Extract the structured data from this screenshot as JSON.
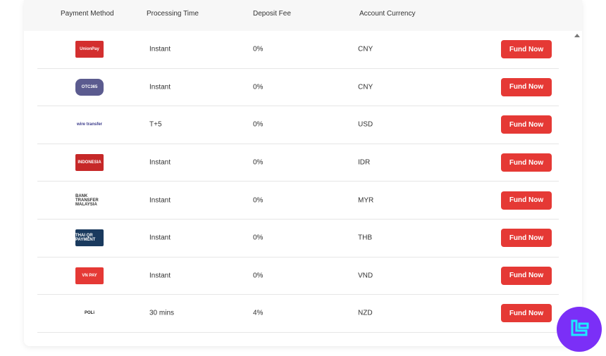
{
  "headers": [
    "Payment Method",
    "Processing Time",
    "Deposit Fee",
    "Account Currency"
  ],
  "rows": [
    {
      "logo": "UnionPay",
      "time": "Instant",
      "fee": "0%",
      "currency": "CNY",
      "button": "Fund Now",
      "color": "#d32f2f"
    },
    {
      "logo": "OTC365",
      "time": "Instant",
      "fee": "0%",
      "currency": "CNY",
      "button": "Fund Now",
      "color": "#5b5b8f"
    },
    {
      "logo": "wire transfer",
      "time": "T+5",
      "fee": "0%",
      "currency": "USD",
      "button": "Fund Now",
      "color": "#ffffff"
    },
    {
      "logo": "INDONESIA",
      "time": "Instant",
      "fee": "0%",
      "currency": "IDR",
      "button": "Fund Now",
      "color": "#c62828"
    },
    {
      "logo": "BANK TRANSFER MALAYSIA",
      "time": "Instant",
      "fee": "0%",
      "currency": "MYR",
      "button": "Fund Now",
      "color": "#ffffff"
    },
    {
      "logo": "THAI QR PAYMENT",
      "time": "Instant",
      "fee": "0%",
      "currency": "THB",
      "button": "Fund Now",
      "color": "#1a3a5e"
    },
    {
      "logo": "VN PAY",
      "time": "Instant",
      "fee": "0%",
      "currency": "VND",
      "button": "Fund Now",
      "color": "#e53935"
    },
    {
      "logo": "POLi",
      "time": "30 mins",
      "fee": "4%",
      "currency": "NZD",
      "button": "Fund Now",
      "color": "#ffffff"
    }
  ],
  "accent": "#e53935"
}
